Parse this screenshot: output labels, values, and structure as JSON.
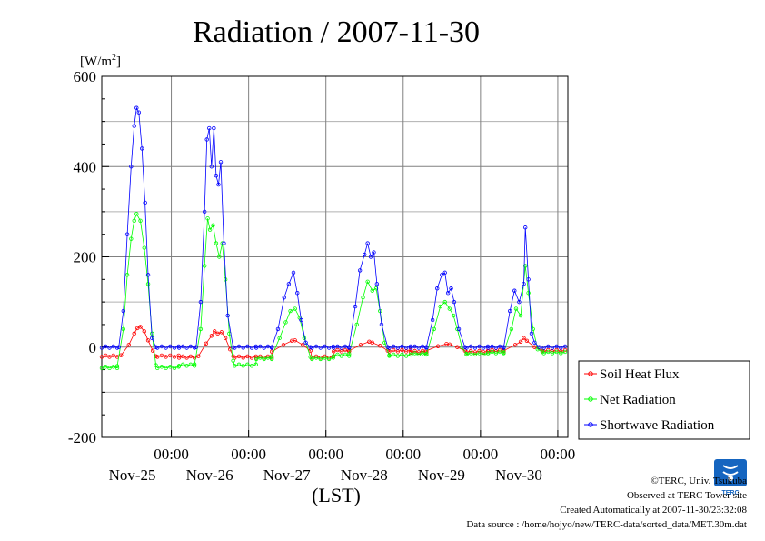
{
  "chart_data": {
    "type": "line",
    "title": "Radiation / 2007-11-30",
    "ylabel": "[W/m2]",
    "xlabel": "(LST)",
    "ylim": [
      -200,
      600
    ],
    "yticks": [
      -200,
      0,
      200,
      400,
      600
    ],
    "xlim": [
      0,
      6
    ],
    "xticks": [
      {
        "x": 1,
        "time": "00:00",
        "date": "Nov-25"
      },
      {
        "x": 2,
        "time": "00:00",
        "date": "Nov-26"
      },
      {
        "x": 3,
        "time": "00:00",
        "date": "Nov-27"
      },
      {
        "x": 4,
        "time": "00:00",
        "date": "Nov-28"
      },
      {
        "x": 5,
        "time": "00:00",
        "date": "Nov-29"
      },
      {
        "x": 6,
        "time": "00:00",
        "date": "Nov-30"
      }
    ],
    "grid": true,
    "legend_position": "right",
    "series": [
      {
        "name": "Soil Heat Flux",
        "color": "#ff0000",
        "night": [
          -20,
          -22,
          -22,
          -8,
          -10,
          -8
        ],
        "day_peak": [
          45,
          35,
          15,
          12,
          7,
          20
        ],
        "day_values": [
          [
            0.25,
            -18
          ],
          [
            0.35,
            5
          ],
          [
            0.42,
            30
          ],
          [
            0.46,
            42
          ],
          [
            0.5,
            45
          ],
          [
            0.55,
            35
          ],
          [
            0.6,
            15
          ],
          [
            0.66,
            -8
          ],
          [
            0.7,
            -20
          ],
          [
            1.25,
            -20
          ],
          [
            1.35,
            8
          ],
          [
            1.42,
            25
          ],
          [
            1.46,
            35
          ],
          [
            1.5,
            30
          ],
          [
            1.55,
            33
          ],
          [
            1.6,
            20
          ],
          [
            1.66,
            -5
          ],
          [
            1.7,
            -20
          ],
          [
            2.2,
            -10
          ],
          [
            2.35,
            5
          ],
          [
            2.46,
            14
          ],
          [
            2.5,
            15
          ],
          [
            2.6,
            5
          ],
          [
            2.7,
            -8
          ],
          [
            3.2,
            -8
          ],
          [
            3.35,
            5
          ],
          [
            3.46,
            12
          ],
          [
            3.5,
            10
          ],
          [
            3.6,
            3
          ],
          [
            3.7,
            -8
          ],
          [
            4.2,
            -8
          ],
          [
            4.35,
            2
          ],
          [
            4.46,
            7
          ],
          [
            4.5,
            6
          ],
          [
            4.6,
            0
          ],
          [
            4.7,
            -8
          ],
          [
            5.2,
            -8
          ],
          [
            5.35,
            5
          ],
          [
            5.42,
            12
          ],
          [
            5.46,
            20
          ],
          [
            5.5,
            14
          ],
          [
            5.6,
            0
          ],
          [
            5.7,
            -8
          ]
        ]
      },
      {
        "name": "Net Radiation",
        "color": "#00ff00",
        "night": [
          -45,
          -40,
          -25,
          -18,
          -15,
          -12
        ],
        "day_peak": [
          295,
          285,
          85,
          145,
          100,
          180
        ],
        "day_values": [
          [
            0.2,
            -42
          ],
          [
            0.28,
            40
          ],
          [
            0.33,
            160
          ],
          [
            0.38,
            240
          ],
          [
            0.42,
            280
          ],
          [
            0.45,
            295
          ],
          [
            0.5,
            280
          ],
          [
            0.55,
            220
          ],
          [
            0.6,
            140
          ],
          [
            0.65,
            30
          ],
          [
            0.7,
            -40
          ],
          [
            1.2,
            -38
          ],
          [
            1.28,
            40
          ],
          [
            1.33,
            180
          ],
          [
            1.37,
            285
          ],
          [
            1.4,
            260
          ],
          [
            1.44,
            270
          ],
          [
            1.48,
            230
          ],
          [
            1.52,
            200
          ],
          [
            1.56,
            230
          ],
          [
            1.6,
            150
          ],
          [
            1.65,
            30
          ],
          [
            1.7,
            -30
          ],
          [
            2.2,
            -20
          ],
          [
            2.3,
            20
          ],
          [
            2.38,
            55
          ],
          [
            2.44,
            80
          ],
          [
            2.5,
            85
          ],
          [
            2.56,
            65
          ],
          [
            2.62,
            20
          ],
          [
            2.7,
            -22
          ],
          [
            3.2,
            -15
          ],
          [
            3.3,
            50
          ],
          [
            3.38,
            110
          ],
          [
            3.44,
            145
          ],
          [
            3.5,
            125
          ],
          [
            3.55,
            130
          ],
          [
            3.6,
            80
          ],
          [
            3.66,
            10
          ],
          [
            3.72,
            -18
          ],
          [
            4.2,
            -15
          ],
          [
            4.3,
            40
          ],
          [
            4.38,
            90
          ],
          [
            4.44,
            100
          ],
          [
            4.5,
            85
          ],
          [
            4.55,
            70
          ],
          [
            4.6,
            40
          ],
          [
            4.66,
            0
          ],
          [
            4.72,
            -15
          ],
          [
            5.2,
            -12
          ],
          [
            5.3,
            40
          ],
          [
            5.36,
            85
          ],
          [
            5.42,
            70
          ],
          [
            5.48,
            180
          ],
          [
            5.52,
            120
          ],
          [
            5.58,
            40
          ],
          [
            5.64,
            -5
          ],
          [
            5.7,
            -10
          ]
        ]
      },
      {
        "name": "Shortwave Radiation",
        "color": "#0000ff",
        "night": [
          0,
          0,
          0,
          0,
          0,
          0
        ],
        "day_peak": [
          530,
          485,
          165,
          230,
          165,
          265
        ],
        "day_values": [
          [
            0.22,
            0
          ],
          [
            0.28,
            80
          ],
          [
            0.33,
            250
          ],
          [
            0.38,
            400
          ],
          [
            0.42,
            490
          ],
          [
            0.45,
            530
          ],
          [
            0.48,
            520
          ],
          [
            0.52,
            440
          ],
          [
            0.56,
            320
          ],
          [
            0.6,
            160
          ],
          [
            0.65,
            20
          ],
          [
            0.7,
            0
          ],
          [
            1.22,
            0
          ],
          [
            1.28,
            100
          ],
          [
            1.33,
            300
          ],
          [
            1.36,
            460
          ],
          [
            1.39,
            485
          ],
          [
            1.42,
            400
          ],
          [
            1.45,
            485
          ],
          [
            1.48,
            380
          ],
          [
            1.51,
            360
          ],
          [
            1.54,
            410
          ],
          [
            1.58,
            230
          ],
          [
            1.63,
            70
          ],
          [
            1.7,
            0
          ],
          [
            2.2,
            0
          ],
          [
            2.28,
            40
          ],
          [
            2.36,
            110
          ],
          [
            2.42,
            140
          ],
          [
            2.48,
            165
          ],
          [
            2.53,
            120
          ],
          [
            2.58,
            60
          ],
          [
            2.64,
            10
          ],
          [
            2.7,
            0
          ],
          [
            3.2,
            0
          ],
          [
            3.28,
            90
          ],
          [
            3.34,
            170
          ],
          [
            3.4,
            205
          ],
          [
            3.44,
            230
          ],
          [
            3.48,
            200
          ],
          [
            3.52,
            210
          ],
          [
            3.56,
            140
          ],
          [
            3.62,
            50
          ],
          [
            3.7,
            0
          ],
          [
            4.2,
            0
          ],
          [
            4.28,
            60
          ],
          [
            4.34,
            130
          ],
          [
            4.4,
            160
          ],
          [
            4.44,
            165
          ],
          [
            4.48,
            120
          ],
          [
            4.52,
            130
          ],
          [
            4.56,
            100
          ],
          [
            4.62,
            40
          ],
          [
            4.7,
            0
          ],
          [
            5.2,
            0
          ],
          [
            5.28,
            80
          ],
          [
            5.34,
            125
          ],
          [
            5.4,
            100
          ],
          [
            5.46,
            140
          ],
          [
            5.48,
            265
          ],
          [
            5.52,
            150
          ],
          [
            5.56,
            30
          ],
          [
            5.6,
            10
          ],
          [
            5.66,
            0
          ]
        ]
      }
    ]
  },
  "credits": {
    "copyright": "©TERC, Univ. Tsukuba",
    "observed": "Observed at TERC Tower site",
    "created": "Created Automatically at 2007-11-30/23:32:08",
    "source": "Data source : /home/hojyo/new/TERC-data/sorted_data/MET.30m.dat"
  },
  "logo": {
    "text": "TERC",
    "color": "#1565c0",
    "icon": "terc-logo-icon"
  }
}
